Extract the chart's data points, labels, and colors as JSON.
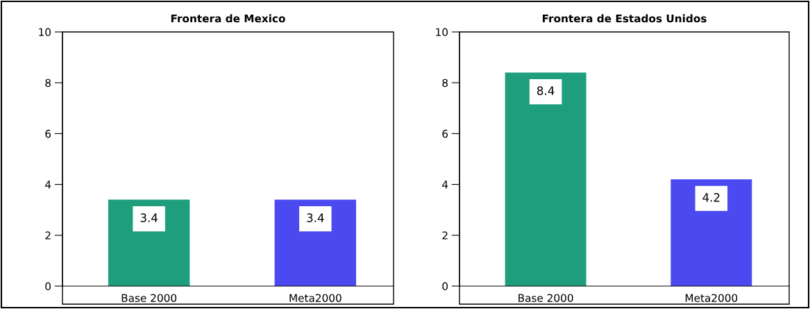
{
  "chart_data": [
    {
      "type": "bar",
      "title": "Frontera de Mexico",
      "categories": [
        "Base 2000",
        "Meta2000"
      ],
      "values": [
        3.4,
        3.4
      ],
      "colors": [
        "#1f9e7e",
        "#4a4af0"
      ],
      "ylim": [
        0,
        10
      ],
      "yticks": [
        0,
        2,
        4,
        6,
        8,
        10
      ],
      "data_labels": true,
      "grid": false,
      "legend": false
    },
    {
      "type": "bar",
      "title": "Frontera de Estados Unidos",
      "categories": [
        "Base 2000",
        "Meta2000"
      ],
      "values": [
        8.4,
        4.2
      ],
      "colors": [
        "#1f9e7e",
        "#4a4af0"
      ],
      "ylim": [
        0,
        10
      ],
      "yticks": [
        0,
        2,
        4,
        6,
        8,
        10
      ],
      "data_labels": true,
      "grid": false,
      "legend": false
    }
  ]
}
